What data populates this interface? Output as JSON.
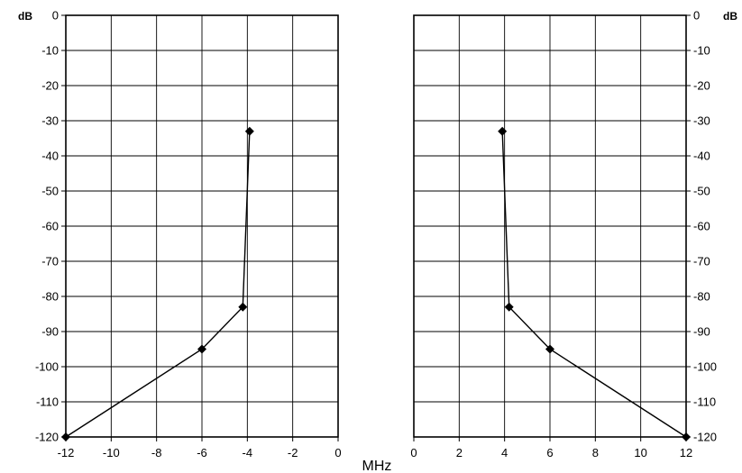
{
  "chart_data": [
    {
      "type": "line",
      "id": "left",
      "ylabel": "dB",
      "xlabel": "",
      "xlim": [
        -12,
        0
      ],
      "ylim": [
        -120,
        0
      ],
      "x_ticks": [
        "-12",
        "-10",
        "-8",
        "-6",
        "-4",
        "-2",
        "0"
      ],
      "y_ticks": [
        "0",
        "-10",
        "-20",
        "-30",
        "-40",
        "-50",
        "-60",
        "-70",
        "-80",
        "-90",
        "-100",
        "-110",
        "-120"
      ],
      "grid": true,
      "series": [
        {
          "x": [
            -12,
            -6,
            -4.2,
            -3.9
          ],
          "y": [
            -120,
            -95,
            -83,
            -33
          ]
        }
      ]
    },
    {
      "type": "line",
      "id": "right",
      "ylabel": "dB",
      "xlabel": "",
      "xlim": [
        0,
        12
      ],
      "ylim": [
        -120,
        0
      ],
      "x_ticks": [
        "0",
        "2",
        "4",
        "6",
        "8",
        "10",
        "12"
      ],
      "y_ticks": [
        "0",
        "-10",
        "-20",
        "-30",
        "-40",
        "-50",
        "-60",
        "-70",
        "-80",
        "-90",
        "-100",
        "-110",
        "-120"
      ],
      "grid": true,
      "series": [
        {
          "x": [
            3.9,
            4.2,
            6,
            12
          ],
          "y": [
            -33,
            -83,
            -95,
            -120
          ]
        }
      ]
    }
  ],
  "shared_xlabel": "MHz",
  "colors": {
    "line": "#000000",
    "grid": "#000000",
    "background": "#ffffff"
  }
}
